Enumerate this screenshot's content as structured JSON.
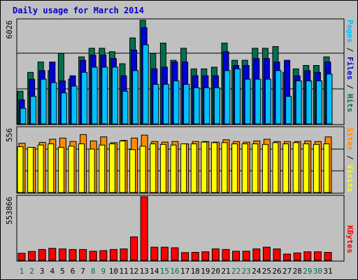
{
  "title": "Daily usage for March 2014",
  "colors": {
    "hits": "#007050",
    "files": "#0000d8",
    "pages": "#00c0ff",
    "visits": "#ffff00",
    "sites": "#ff8c00",
    "kbytes": "#ff0000",
    "weekend_label": "#007050",
    "weekday_label": "#000000"
  },
  "side_labels": {
    "top": [
      {
        "text": "Pages",
        "color": "#00c0ff"
      },
      {
        "text": " / ",
        "color": "#000000"
      },
      {
        "text": "Files",
        "color": "#0000d8"
      },
      {
        "text": " / ",
        "color": "#000000"
      },
      {
        "text": "Hits",
        "color": "#007050"
      }
    ],
    "middle": [
      {
        "text": "Sites",
        "color": "#ff8c00"
      },
      {
        "text": " / ",
        "color": "#000000"
      },
      {
        "text": "Visits",
        "color": "#ffff00"
      }
    ],
    "bottom": [
      {
        "text": "KBytes",
        "color": "#ff0000"
      }
    ]
  },
  "chart_data": [
    {
      "type": "bar",
      "panel": "hits-files-pages",
      "ymax_label": "6026",
      "ylim": [
        0,
        6026
      ],
      "grid": true,
      "categories": [
        "1",
        "2",
        "3",
        "4",
        "5",
        "6",
        "7",
        "8",
        "9",
        "10",
        "11",
        "12",
        "13",
        "14",
        "15",
        "16",
        "17",
        "18",
        "19",
        "20",
        "21",
        "22",
        "23",
        "24",
        "25",
        "26",
        "27",
        "28",
        "29",
        "30",
        "31"
      ],
      "weekend_days": [
        "1",
        "2",
        "8",
        "9",
        "15",
        "16",
        "22",
        "23",
        "29",
        "30"
      ],
      "series": [
        {
          "name": "Hits",
          "values": [
            1900,
            3000,
            3600,
            3100,
            4100,
            2600,
            3900,
            4400,
            4400,
            4200,
            3500,
            5000,
            6026,
            4100,
            4700,
            3700,
            4400,
            3200,
            3200,
            3300,
            4700,
            3700,
            3700,
            4400,
            4400,
            4500,
            3000,
            3200,
            3400,
            3400,
            3900
          ]
        },
        {
          "name": "Files",
          "values": [
            1400,
            2600,
            3100,
            3600,
            2500,
            2800,
            3700,
            4000,
            4000,
            3800,
            2800,
            4300,
            5600,
            3200,
            3300,
            3600,
            3600,
            2800,
            2800,
            2800,
            4200,
            3400,
            3400,
            3800,
            3800,
            3600,
            3700,
            2800,
            3100,
            3000,
            3600
          ]
        },
        {
          "name": "Pages",
          "values": [
            900,
            1600,
            2600,
            2400,
            1800,
            2200,
            3000,
            3300,
            3300,
            3300,
            1900,
            3100,
            4600,
            2300,
            2300,
            2500,
            2300,
            2100,
            2100,
            2100,
            3100,
            3200,
            2600,
            2600,
            2600,
            3100,
            1600,
            2500,
            2500,
            2500,
            2900
          ]
        }
      ]
    },
    {
      "type": "bar",
      "panel": "sites-visits",
      "ymax_label": "556",
      "ylim": [
        0,
        556
      ],
      "grid": true,
      "categories": [
        "1",
        "2",
        "3",
        "4",
        "5",
        "6",
        "7",
        "8",
        "9",
        "10",
        "11",
        "12",
        "13",
        "14",
        "15",
        "16",
        "17",
        "18",
        "19",
        "20",
        "21",
        "22",
        "23",
        "24",
        "25",
        "26",
        "27",
        "28",
        "29",
        "30",
        "31"
      ],
      "series": [
        {
          "name": "Sites",
          "values": [
            425,
            390,
            433,
            460,
            470,
            440,
            500,
            445,
            480,
            430,
            450,
            470,
            495,
            440,
            435,
            440,
            420,
            440,
            440,
            435,
            455,
            440,
            435,
            445,
            460,
            440,
            440,
            440,
            445,
            440,
            480
          ]
        },
        {
          "name": "Visits",
          "values": [
            395,
            390,
            410,
            420,
            390,
            400,
            420,
            375,
            410,
            420,
            445,
            370,
            400,
            420,
            415,
            410,
            420,
            420,
            435,
            430,
            430,
            420,
            420,
            420,
            415,
            430,
            420,
            430,
            420,
            415,
            420
          ]
        }
      ]
    },
    {
      "type": "bar",
      "panel": "kbytes",
      "ymax_label": "553866",
      "ylim": [
        0,
        553866
      ],
      "grid": false,
      "categories": [
        "1",
        "2",
        "3",
        "4",
        "5",
        "6",
        "7",
        "8",
        "9",
        "10",
        "11",
        "12",
        "13",
        "14",
        "15",
        "16",
        "17",
        "18",
        "19",
        "20",
        "21",
        "22",
        "23",
        "24",
        "25",
        "26",
        "27",
        "28",
        "29",
        "30",
        "31"
      ],
      "series": [
        {
          "name": "KBytes",
          "values": [
            62000,
            78000,
            95000,
            105000,
            100000,
            95000,
            95000,
            80000,
            85000,
            95000,
            100000,
            205000,
            553866,
            115000,
            115000,
            110000,
            68000,
            70000,
            75000,
            100000,
            95000,
            80000,
            80000,
            100000,
            115000,
            100000,
            55000,
            65000,
            75000,
            75000,
            70000
          ]
        }
      ]
    }
  ]
}
